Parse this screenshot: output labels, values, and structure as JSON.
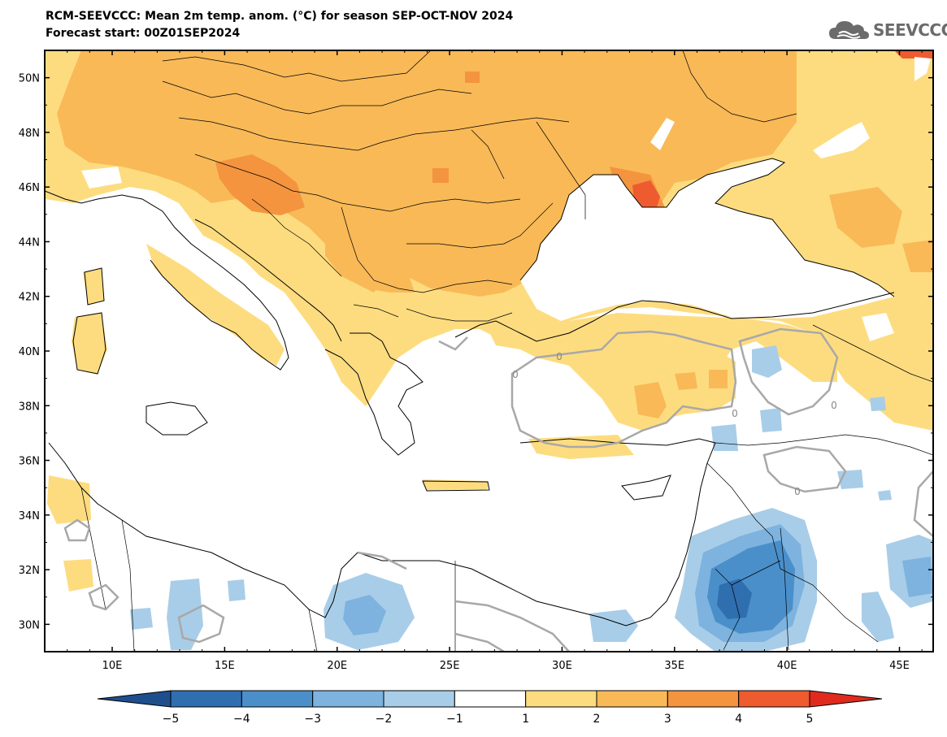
{
  "title": {
    "line1": "RCM-SEEVCCC: Mean 2m temp. anom. (°C) for season SEP-OCT-NOV 2024",
    "line2": "Forecast start: 00Z01SEP2024"
  },
  "logo": {
    "text": "SEEVCCC",
    "icon": "cloud-icon"
  },
  "map": {
    "lat_labels": [
      "50N",
      "48N",
      "46N",
      "44N",
      "42N",
      "40N",
      "38N",
      "36N",
      "34N",
      "32N",
      "30N"
    ],
    "lon_labels": [
      "10E",
      "15E",
      "20E",
      "25E",
      "30E",
      "35E",
      "40E",
      "45E"
    ],
    "contour_labels": [
      "0",
      "0",
      "0",
      "0",
      "0"
    ],
    "lat_range": [
      29,
      51
    ],
    "lon_range": [
      7,
      46.5
    ]
  },
  "colorbar": {
    "ticks": [
      "−5",
      "−4",
      "−3",
      "−2",
      "−1",
      "1",
      "2",
      "3",
      "4",
      "5"
    ],
    "colors": [
      "#1f4e8c",
      "#2f6fb0",
      "#4a8fca",
      "#7db3de",
      "#a8cde8",
      "#ffffff",
      "#fddc80",
      "#f9b957",
      "#f4943f",
      "#ee5b2e",
      "#e02a1d"
    ]
  },
  "colors": {
    "sea": "#ffffff",
    "warm1": "#fddc80",
    "warm2": "#f9b957",
    "warm3": "#f4943f",
    "warm4": "#ee5b2e",
    "cool1": "#a8cde8",
    "cool2": "#7db3de",
    "cool3": "#4a8fca",
    "cool4": "#2f6fb0",
    "zero_contour": "#a8a8a8"
  }
}
